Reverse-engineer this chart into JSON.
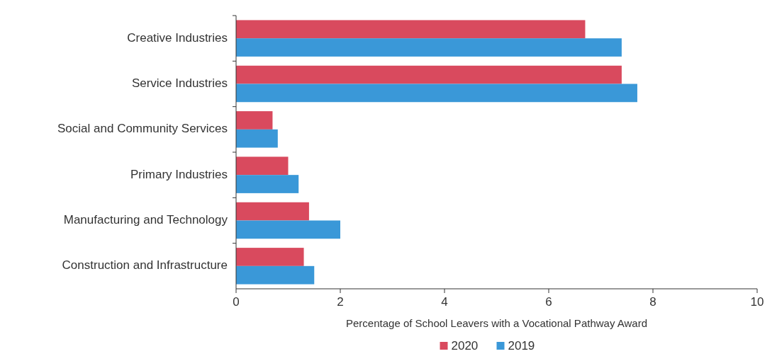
{
  "chart_data": {
    "type": "bar",
    "orientation": "horizontal",
    "xlabel": "Percentage of School Leavers with a Vocational Pathway Award",
    "categories": [
      "Creative Industries",
      "Service Industries",
      "Social and Community Services",
      "Primary Industries",
      "Manufacturing and Technology",
      "Construction and Infrastructure"
    ],
    "series": [
      {
        "name": "2020",
        "color": "#d94a5e",
        "values": [
          6.7,
          7.4,
          0.7,
          1.0,
          1.4,
          1.3
        ]
      },
      {
        "name": "2019",
        "color": "#3a98d8",
        "values": [
          7.4,
          7.7,
          0.8,
          1.2,
          2.0,
          1.5
        ]
      }
    ],
    "xlim": [
      0,
      10
    ],
    "xticks": [
      0,
      2,
      4,
      6,
      8,
      10
    ],
    "legend": "bottom"
  }
}
